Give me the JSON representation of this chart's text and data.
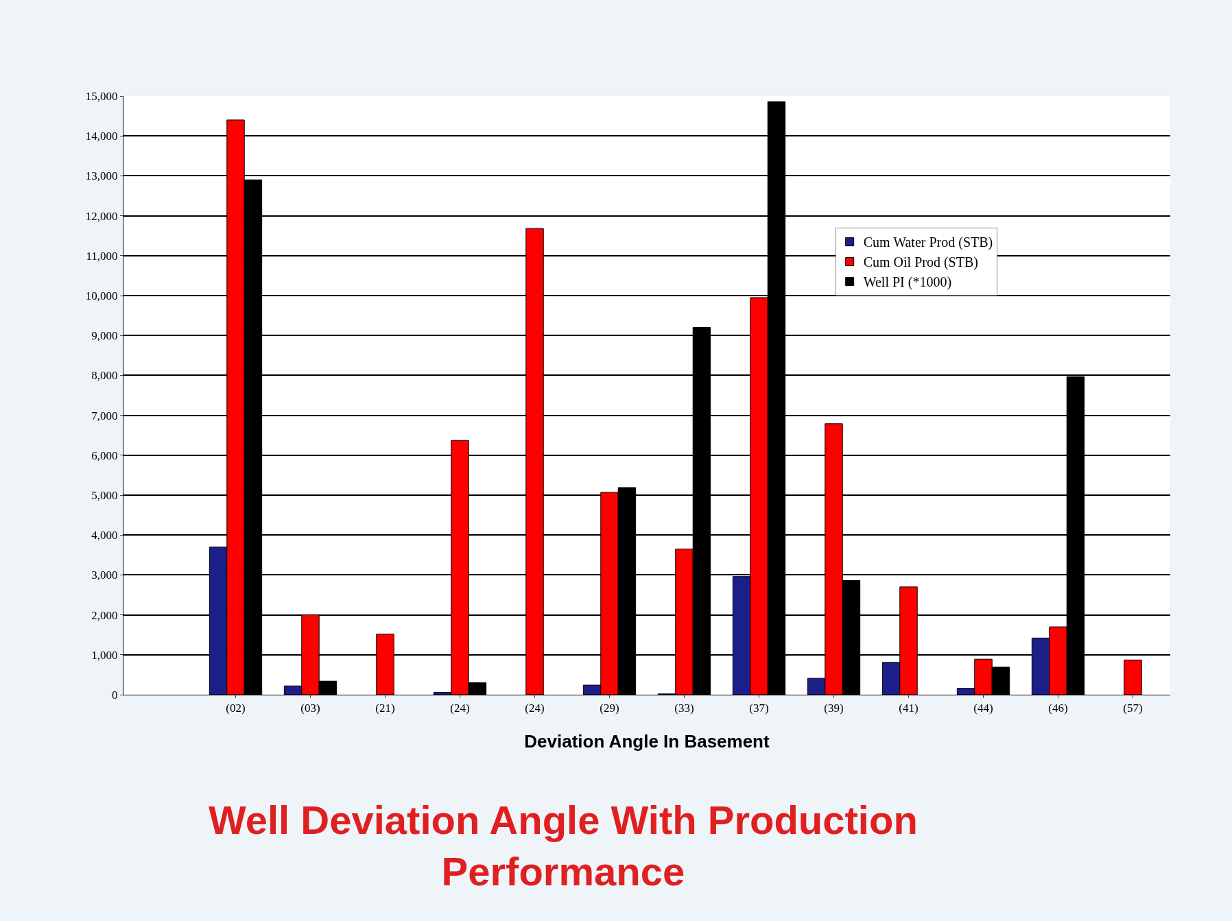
{
  "chart_data": {
    "type": "bar",
    "title": "Well Deviation Angle With Production Performance",
    "xlabel": "Deviation Angle In Basement",
    "categories": [
      null,
      "(02)",
      "(03)",
      "(21)",
      "(24)",
      "(24)",
      "(29)",
      "(33)",
      "(37)",
      "(39)",
      "(41)",
      "(44)",
      "(46)",
      "(57)"
    ],
    "series": [
      {
        "name": "Cum Water Prod (STB)",
        "color": "#1c1f8a",
        "values": [
          null,
          3700,
          220,
          null,
          60,
          null,
          240,
          20,
          2960,
          410,
          810,
          160,
          1420,
          null
        ]
      },
      {
        "name": "Cum Oil Prod (STB)",
        "color": "#ff0000",
        "values": [
          null,
          14400,
          2000,
          1520,
          6370,
          11680,
          5070,
          3650,
          9950,
          6790,
          2700,
          890,
          1700,
          870
        ]
      },
      {
        "name": "Well PI (*1000)",
        "color": "#000000",
        "values": [
          null,
          12900,
          340,
          null,
          300,
          null,
          5190,
          9200,
          14860,
          2860,
          null,
          690,
          7970,
          null
        ]
      }
    ],
    "ylim": [
      0,
      15000
    ],
    "yticks": [
      {
        "value": 0,
        "label": "0"
      },
      {
        "value": 1000,
        "label": "1,000"
      },
      {
        "value": 2000,
        "label": "2,000"
      },
      {
        "value": 3000,
        "label": "3,000"
      },
      {
        "value": 4000,
        "label": "4,000"
      },
      {
        "value": 5000,
        "label": "5,000"
      },
      {
        "value": 6000,
        "label": "6,000"
      },
      {
        "value": 7000,
        "label": "7,000"
      },
      {
        "value": 8000,
        "label": "8,000"
      },
      {
        "value": 9000,
        "label": "9,000"
      },
      {
        "value": 10000,
        "label": "10,000"
      },
      {
        "value": 11000,
        "label": "11,000"
      },
      {
        "value": 12000,
        "label": "12,000"
      },
      {
        "value": 13000,
        "label": "13,000"
      },
      {
        "value": 14000,
        "label": "14,000"
      },
      {
        "value": 15000,
        "label": "15,000"
      }
    ],
    "grid": "y",
    "legend": "top right"
  }
}
